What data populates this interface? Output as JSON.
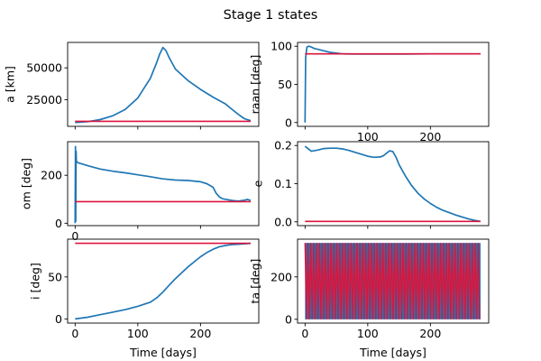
{
  "figure": {
    "title": "Stage 1 states",
    "colors": {
      "state": "#1f77b4",
      "target": "#dc143c",
      "axes": "#000000",
      "background": "#ffffff"
    }
  },
  "chart_data": [
    {
      "type": "line",
      "ylabel": "a [km]",
      "xlabel": "",
      "xlim": [
        -12,
        293
      ],
      "ylim": [
        4000,
        70000
      ],
      "xticks": [
        0,
        100,
        200
      ],
      "xtick_labels": [
        "",
        "",
        ""
      ],
      "yticks": [
        25000,
        50000
      ],
      "ytick_labels": [
        "25000",
        "50000"
      ],
      "series": [
        {
          "role": "state",
          "color": "#1f77b4",
          "x": [
            0,
            20,
            40,
            60,
            80,
            100,
            120,
            130,
            135,
            140,
            145,
            150,
            160,
            180,
            200,
            220,
            240,
            250,
            260,
            270,
            280
          ],
          "y": [
            7000,
            7700,
            9300,
            12300,
            17300,
            26300,
            41800,
            54000,
            61000,
            66000,
            63500,
            58000,
            49000,
            40000,
            33000,
            27000,
            21500,
            17500,
            13500,
            10000,
            8500
          ]
        },
        {
          "role": "target",
          "color": "#dc143c",
          "x": [
            0,
            280
          ],
          "y": [
            8000,
            8000
          ]
        }
      ]
    },
    {
      "type": "line",
      "ylabel": "raan [deg]",
      "xlabel": "",
      "xlim": [
        -12,
        293
      ],
      "ylim": [
        -5,
        105
      ],
      "xticks": [
        0,
        100,
        200
      ],
      "xtick_labels": [
        "",
        "100",
        "200"
      ],
      "yticks": [
        0,
        50,
        100
      ],
      "ytick_labels": [
        "0",
        "50",
        "100"
      ],
      "series": [
        {
          "role": "state",
          "color": "#1f77b4",
          "x": [
            0,
            1,
            3,
            6,
            10,
            15,
            20,
            30,
            40,
            50,
            60,
            80,
            120,
            160,
            200,
            240,
            280
          ],
          "y": [
            0,
            85,
            99,
            100,
            99,
            97,
            96,
            94,
            92,
            91,
            90,
            89.8,
            89.7,
            89.7,
            90,
            90,
            90
          ]
        },
        {
          "role": "target",
          "color": "#dc143c",
          "x": [
            0,
            280
          ],
          "y": [
            90,
            90
          ]
        }
      ]
    },
    {
      "type": "line",
      "ylabel": "om [deg]",
      "xlabel": "",
      "xlim": [
        -12,
        293
      ],
      "ylim": [
        -10,
        340
      ],
      "xticks": [
        0,
        100,
        200
      ],
      "xtick_labels": [
        "0",
        "",
        ""
      ],
      "yticks": [
        0,
        200
      ],
      "ytick_labels": [
        "0",
        "200"
      ],
      "series": [
        {
          "role": "state",
          "color": "#1f77b4",
          "x": [
            0,
            0.5,
            1,
            1.5,
            2,
            3,
            5,
            10,
            20,
            40,
            60,
            80,
            100,
            120,
            140,
            160,
            180,
            200,
            210,
            220,
            225,
            230,
            235,
            240,
            250,
            260,
            270,
            275,
            280
          ],
          "y": [
            0,
            320,
            8,
            300,
            260,
            255,
            252,
            248,
            240,
            226,
            217,
            210,
            202,
            194,
            185,
            180,
            178,
            173,
            165,
            150,
            125,
            110,
            102,
            100,
            95,
            92,
            96,
            99,
            95
          ]
        },
        {
          "role": "target",
          "color": "#dc143c",
          "x": [
            0,
            280
          ],
          "y": [
            90,
            90
          ]
        }
      ]
    },
    {
      "type": "line",
      "ylabel": "e",
      "xlabel": "",
      "xlim": [
        -12,
        293
      ],
      "ylim": [
        -0.01,
        0.21
      ],
      "xticks": [
        0,
        100,
        200
      ],
      "xtick_labels": [
        "",
        "",
        ""
      ],
      "yticks": [
        0.0,
        0.1,
        0.2
      ],
      "ytick_labels": [
        "0.0",
        "0.1",
        "0.2"
      ],
      "series": [
        {
          "role": "state",
          "color": "#1f77b4",
          "x": [
            0,
            10,
            20,
            30,
            40,
            50,
            60,
            70,
            80,
            90,
            100,
            110,
            120,
            125,
            130,
            135,
            140,
            145,
            150,
            160,
            170,
            180,
            190,
            200,
            210,
            220,
            230,
            240,
            250,
            260,
            270,
            280
          ],
          "y": [
            0.198,
            0.185,
            0.188,
            0.192,
            0.193,
            0.193,
            0.191,
            0.187,
            0.182,
            0.177,
            0.172,
            0.169,
            0.17,
            0.173,
            0.18,
            0.186,
            0.184,
            0.17,
            0.15,
            0.12,
            0.095,
            0.075,
            0.06,
            0.048,
            0.038,
            0.03,
            0.024,
            0.018,
            0.013,
            0.008,
            0.004,
            0.001
          ]
        },
        {
          "role": "target",
          "color": "#dc143c",
          "x": [
            0,
            280
          ],
          "y": [
            0.001,
            0.001
          ]
        }
      ]
    },
    {
      "type": "line",
      "ylabel": "i [deg]",
      "xlabel": "Time [days]",
      "xlim": [
        -12,
        293
      ],
      "ylim": [
        -5,
        95
      ],
      "xticks": [
        0,
        100,
        200
      ],
      "xtick_labels": [
        "0",
        "100",
        "200"
      ],
      "yticks": [
        0,
        50
      ],
      "ytick_labels": [
        "0",
        "50"
      ],
      "series": [
        {
          "role": "state",
          "color": "#1f77b4",
          "x": [
            0,
            20,
            40,
            60,
            80,
            100,
            120,
            130,
            140,
            150,
            160,
            170,
            180,
            190,
            200,
            210,
            220,
            230,
            240,
            250,
            260,
            270,
            280
          ],
          "y": [
            0,
            2,
            5,
            8,
            11,
            15,
            20,
            25,
            32,
            40,
            48,
            55,
            62,
            68,
            74,
            79,
            83,
            86,
            87.5,
            88.5,
            89,
            89.5,
            90
          ]
        },
        {
          "role": "target",
          "color": "#dc143c",
          "x": [
            0,
            280
          ],
          "y": [
            90,
            90
          ]
        }
      ]
    },
    {
      "type": "line",
      "ylabel": "ta [deg]",
      "xlabel": "Time [days]",
      "xlim": [
        -12,
        293
      ],
      "ylim": [
        -18,
        378
      ],
      "xticks": [
        0,
        100,
        200
      ],
      "xtick_labels": [
        "0",
        "100",
        "200"
      ],
      "yticks": [
        0,
        200
      ],
      "ytick_labels": [
        "0",
        "200"
      ],
      "series": [
        {
          "role": "state-band",
          "color": "#1f77b4",
          "x": [
            0,
            280
          ],
          "y_range": [
            0,
            360
          ]
        },
        {
          "role": "target-band",
          "color": "#dc143c",
          "x": [
            0,
            280
          ],
          "y_range": [
            0,
            360
          ]
        }
      ]
    }
  ]
}
